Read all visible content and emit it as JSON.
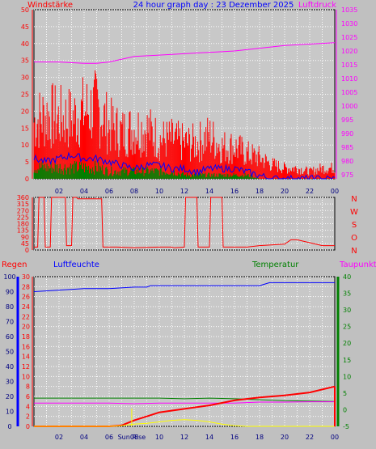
{
  "title": "24 hour graph day : 23 Dezember 2025",
  "x_ticks": [
    "02",
    "04",
    "06",
    "08",
    "10",
    "12",
    "14",
    "16",
    "18",
    "20",
    "22",
    "00"
  ],
  "sun_label": "Sun Rise",
  "colors": {
    "background": "#c0c0c0",
    "plot": "#c8c8c8",
    "red": "#ff0000",
    "blue": "#0000ff",
    "green": "#008000",
    "magenta": "#ff00ff",
    "yellow": "#ffff00"
  },
  "chart_data": [
    {
      "type": "line",
      "left_label": "Windstärke",
      "right_label": "Luftdruck",
      "left_ticks": [
        0,
        5,
        10,
        15,
        20,
        25,
        30,
        35,
        40,
        45,
        50
      ],
      "right_ticks": [
        975,
        980,
        985,
        990,
        995,
        1000,
        1005,
        1010,
        1015,
        1020,
        1025,
        1030,
        1035
      ],
      "ylim_left": [
        0,
        50
      ],
      "ylim_right": [
        973.5,
        1035
      ],
      "series": [
        {
          "color": "red",
          "axis": "left",
          "x": [
            0,
            1,
            2,
            3,
            4,
            5,
            6,
            7,
            8,
            9,
            10,
            11,
            12,
            13,
            14,
            15,
            16,
            17,
            18,
            19,
            20,
            21,
            22,
            23,
            24
          ],
          "values": [
            16,
            18,
            17,
            17,
            19,
            20,
            15,
            13,
            14,
            14,
            11,
            11,
            10,
            10,
            12,
            9,
            9,
            7,
            6,
            4,
            3,
            3,
            2,
            3,
            3
          ]
        },
        {
          "color": "blue",
          "axis": "left",
          "x": [
            0,
            1,
            2,
            3,
            4,
            5,
            6,
            7,
            8,
            9,
            10,
            11,
            12,
            13,
            14,
            15,
            16,
            17,
            18,
            19,
            20,
            21,
            22,
            23,
            24
          ],
          "values": [
            6,
            5,
            6,
            7,
            6,
            6,
            5,
            4,
            3,
            4,
            4,
            3,
            3,
            2,
            3,
            3,
            3,
            2,
            1,
            0,
            0,
            0,
            0,
            0,
            0
          ]
        },
        {
          "color": "green",
          "axis": "left",
          "x": [
            0,
            1,
            2,
            3,
            4,
            5,
            6,
            7,
            8,
            9,
            10,
            11,
            12,
            13,
            14,
            15,
            16,
            17,
            18,
            19,
            20,
            21,
            22,
            23,
            24
          ],
          "values": [
            3,
            3,
            3,
            3,
            3,
            3,
            2,
            2,
            2,
            2,
            2,
            2,
            1,
            1,
            1,
            1,
            1,
            1,
            0,
            0,
            0,
            0,
            0,
            0,
            0
          ]
        },
        {
          "color": "magenta",
          "axis": "right",
          "x": [
            0,
            2,
            4,
            5,
            6,
            8,
            10,
            12,
            14,
            16,
            18,
            20,
            22,
            24
          ],
          "values": [
            1016,
            1016,
            1015.5,
            1015.5,
            1016,
            1018,
            1018.5,
            1019,
            1019.5,
            1020,
            1021,
            1022,
            1022.5,
            1023
          ]
        }
      ]
    },
    {
      "type": "line",
      "right_letters": [
        "N",
        "W",
        "S",
        "O",
        "N"
      ],
      "left_ticks": [
        0,
        45,
        90,
        135,
        180,
        225,
        270,
        315,
        360
      ],
      "ylim": [
        0,
        360
      ],
      "series": [
        {
          "color": "red",
          "x": [
            0,
            0.3,
            0.4,
            0.8,
            0.9,
            1.3,
            1.4,
            2.5,
            2.6,
            3,
            3.1,
            3.4,
            3.5,
            5.4,
            5.5,
            6.5,
            6.6,
            8,
            10,
            11,
            11.2,
            12,
            12.1,
            13,
            13.1,
            14,
            14.1,
            15,
            15.1,
            17,
            18,
            20,
            20.5,
            21,
            22,
            23,
            24
          ],
          "values": [
            20,
            20,
            360,
            360,
            20,
            20,
            360,
            360,
            30,
            30,
            360,
            360,
            350,
            350,
            20,
            20,
            20,
            15,
            20,
            20,
            15,
            20,
            360,
            360,
            20,
            20,
            360,
            360,
            20,
            20,
            30,
            40,
            70,
            70,
            50,
            30,
            30
          ]
        }
      ]
    },
    {
      "type": "line",
      "left_labels": [
        "Regen",
        "Luftfeuchte"
      ],
      "right_labels": [
        "Temperatur",
        "Taupunkt"
      ],
      "left_ticks_humidity": [
        0,
        10,
        20,
        30,
        40,
        50,
        60,
        70,
        80,
        90,
        100
      ],
      "left_ticks_rain": [
        0,
        2,
        4,
        6,
        8,
        10,
        12,
        14,
        16,
        18,
        20,
        22,
        24,
        26,
        28,
        30
      ],
      "right_ticks": [
        -5,
        0,
        5,
        10,
        15,
        20,
        25,
        30,
        35,
        40
      ],
      "ylim_rain": [
        0,
        30
      ],
      "ylim_humidity": [
        0,
        100
      ],
      "ylim_temp": [
        -5,
        40
      ],
      "series": [
        {
          "color": "blue",
          "axis": "humidity",
          "x": [
            0,
            2,
            4,
            6,
            8,
            9,
            9.3,
            12,
            14,
            16,
            18,
            18.8,
            19,
            21,
            24
          ],
          "values": [
            90,
            91,
            92,
            92,
            93,
            93,
            94,
            94,
            94,
            94,
            94,
            96,
            96,
            96,
            96
          ]
        },
        {
          "color": "green",
          "axis": "temp",
          "x": [
            0,
            2,
            4,
            6,
            8,
            10,
            12,
            14,
            16,
            18,
            20,
            22,
            24
          ],
          "values": [
            3.5,
            3.5,
            3.5,
            3.5,
            3.5,
            3.5,
            3.3,
            3.5,
            3.3,
            3,
            2.7,
            2.6,
            2.5
          ]
        },
        {
          "color": "magenta",
          "axis": "temp",
          "x": [
            0,
            2,
            4,
            6,
            8,
            10,
            12,
            14,
            16,
            18,
            20,
            22,
            24
          ],
          "values": [
            2,
            2,
            2,
            2,
            1.8,
            2,
            2,
            2,
            2,
            2.3,
            2.3,
            2.4,
            2.4
          ]
        },
        {
          "color": "red",
          "axis": "rain",
          "x": [
            0,
            6,
            7,
            8,
            9,
            10,
            12,
            14,
            16,
            18,
            20,
            22,
            24
          ],
          "values": [
            0,
            0,
            0.2,
            1.2,
            2,
            2.8,
            3.5,
            4.2,
            5.2,
            5.8,
            6.2,
            6.8,
            8
          ]
        },
        {
          "color": "yellow",
          "axis": "humidity",
          "x": [
            0,
            6,
            7,
            8,
            9,
            10,
            11,
            12,
            13,
            14,
            15,
            16,
            17,
            18,
            24
          ],
          "values": [
            0,
            0,
            0.5,
            1.5,
            2,
            3,
            4,
            4.5,
            4,
            3,
            1.5,
            0.5,
            0,
            0,
            0
          ]
        }
      ]
    }
  ]
}
